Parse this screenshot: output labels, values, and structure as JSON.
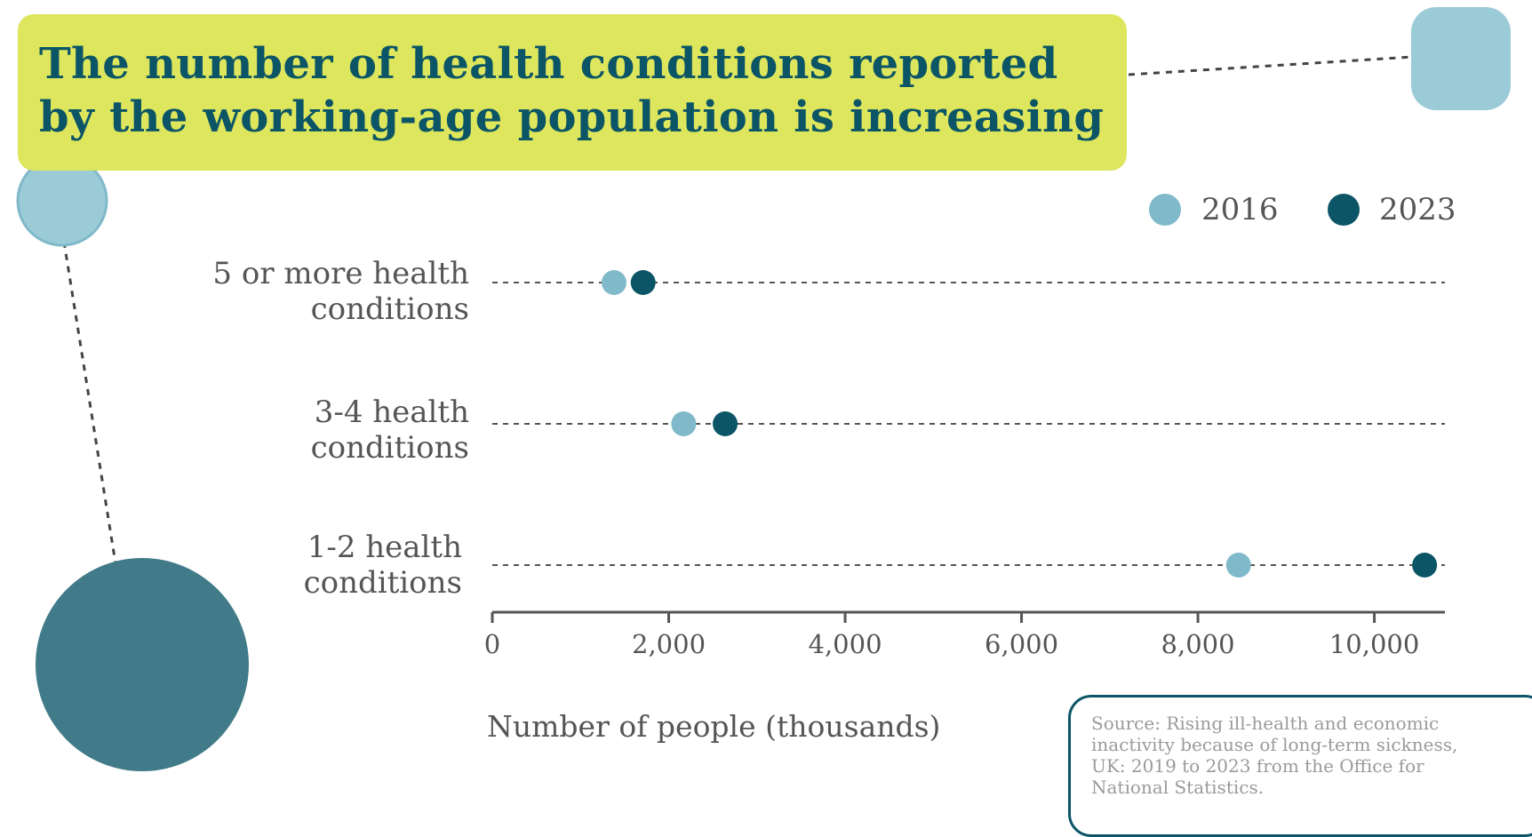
{
  "title": {
    "line1": "The number of health conditions reported",
    "line2": "by the working-age population is increasing"
  },
  "legend": [
    {
      "label": "2016",
      "color": "#7fb9ca"
    },
    {
      "label": "2023",
      "color": "#0b5566"
    }
  ],
  "chart_data": {
    "type": "scatter",
    "subtype": "dot-plot",
    "categories": [
      "5 or more health conditions",
      "3-4 health conditions",
      "1-2 health conditions"
    ],
    "category_lines": [
      [
        "5 or more health",
        "conditions"
      ],
      [
        "3-4 health",
        "conditions"
      ],
      [
        "1-2 health",
        "conditions"
      ]
    ],
    "series": [
      {
        "name": "2016",
        "color": "#7fb9ca",
        "values": [
          1380,
          2170,
          8460
        ]
      },
      {
        "name": "2023",
        "color": "#0b5566",
        "values": [
          1710,
          2640,
          10570
        ]
      }
    ],
    "xlim": [
      0,
      10800
    ],
    "xticks": [
      0,
      2000,
      4000,
      6000,
      8000,
      10000
    ],
    "xtick_labels": [
      "0",
      "2,000",
      "4,000",
      "6,000",
      "8,000",
      "10,000"
    ],
    "xlabel": "Number of people (thousands)",
    "grid": false,
    "legend_position": "top-right"
  },
  "source": "Source: Rising ill-health and economic inactivity because of long-term sickness, UK: 2019 to 2023 from the Office for National Statistics.",
  "colors": {
    "accent_yellow": "#dde65c",
    "dark_teal": "#0b5566",
    "light_blue": "#9ccbd8",
    "mid_teal": "#417b89"
  }
}
